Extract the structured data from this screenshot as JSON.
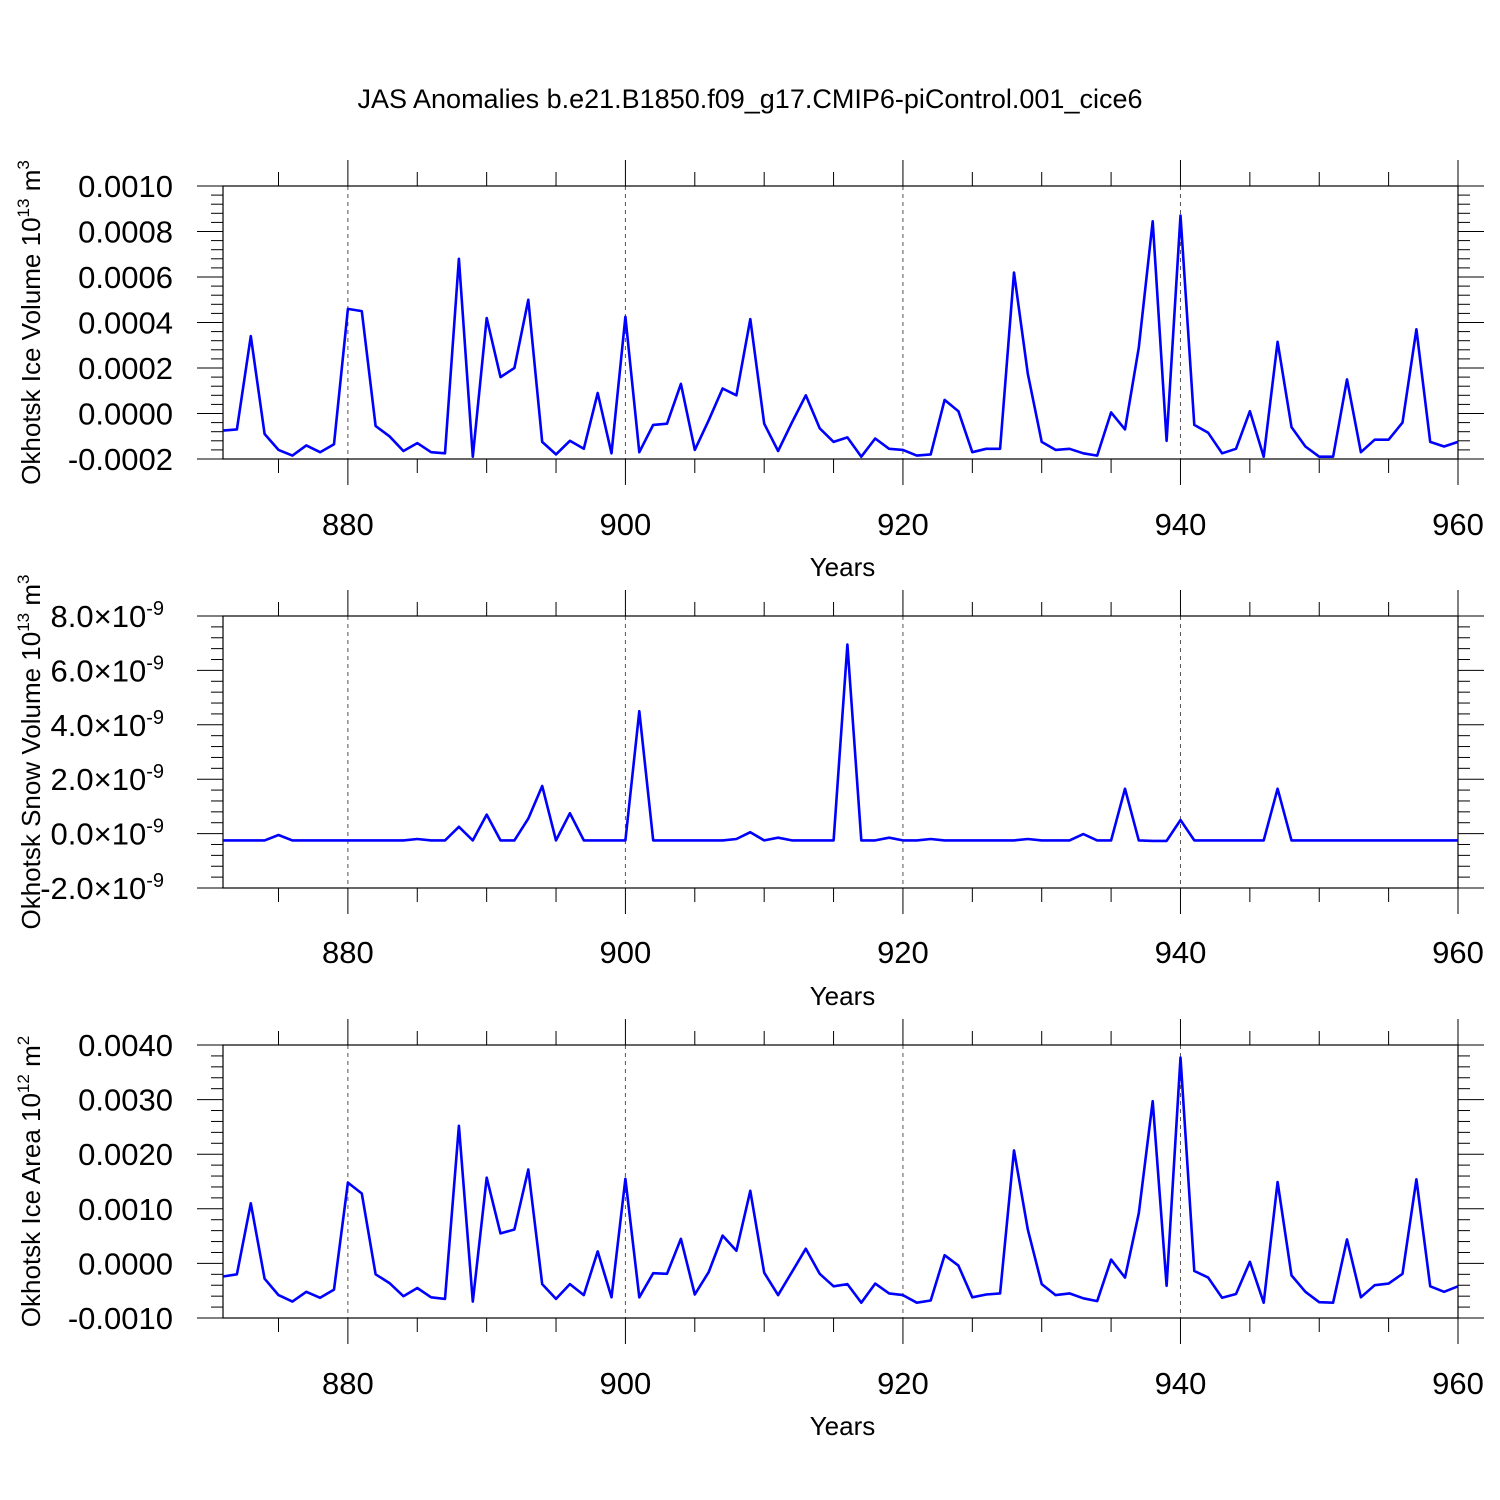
{
  "title": "JAS Anomalies b.e21.B1850.f09_g17.CMIP6-piControl.001_cice6",
  "colors": {
    "line": "#0000ff",
    "axis": "#000000",
    "grid": "#555555"
  },
  "chart_data": [
    {
      "type": "line",
      "ylabel": "Okhotsk Ice Volume 10",
      "ylabel_sup": "13",
      "ylabel_unit": "m",
      "ylabel_unit_sup": "3",
      "xlabel": "Years",
      "xlim": [
        871,
        960
      ],
      "ylim": [
        -0.0002,
        0.001
      ],
      "x_ticks": [
        880,
        900,
        920,
        940,
        960
      ],
      "x_tick_labels": [
        "880",
        "900",
        "920",
        "940",
        "960"
      ],
      "y_ticks": [
        -0.0002,
        0.0,
        0.0002,
        0.0004,
        0.0006,
        0.0008,
        0.001
      ],
      "y_tick_labels": [
        "-0.0002",
        "0.0000",
        "0.0002",
        "0.0004",
        "0.0006",
        "0.0008",
        "0.0010"
      ],
      "vertical_grid": true,
      "series": [
        {
          "x": [
            871,
            872,
            873,
            874,
            875,
            876,
            877,
            878,
            879,
            880,
            881,
            882,
            883,
            884,
            885,
            886,
            887,
            888,
            889,
            890,
            891,
            892,
            893,
            894,
            895,
            896,
            897,
            898,
            899,
            900,
            901,
            902,
            903,
            904,
            905,
            906,
            907,
            908,
            909,
            910,
            911,
            912,
            913,
            914,
            915,
            916,
            917,
            918,
            919,
            920,
            921,
            922,
            923,
            924,
            925,
            926,
            927,
            928,
            929,
            930,
            931,
            932,
            933,
            934,
            935,
            936,
            937,
            938,
            939,
            940,
            941,
            942,
            943,
            944,
            945,
            946,
            947,
            948,
            949,
            950,
            951,
            952,
            953,
            954,
            955,
            956,
            957,
            958,
            959,
            960
          ],
          "values": [
            -7.5e-05,
            -7e-05,
            0.00034,
            -9e-05,
            -0.00016,
            -0.000185,
            -0.00014,
            -0.00017,
            -0.000135,
            0.00046,
            0.00045,
            -5.5e-05,
            -0.0001,
            -0.000165,
            -0.00013,
            -0.00017,
            -0.000175,
            0.00068,
            -0.00019,
            0.00042,
            0.00016,
            0.0002,
            0.0005,
            -0.000125,
            -0.00018,
            -0.00012,
            -0.000155,
            9e-05,
            -0.000175,
            0.000425,
            -0.00017,
            -5e-05,
            -4.5e-05,
            0.00013,
            -0.00016,
            -3e-05,
            0.00011,
            8e-05,
            0.000415,
            -4.5e-05,
            -0.000165,
            -4e-05,
            8e-05,
            -6.5e-05,
            -0.000125,
            -0.000105,
            -0.00019,
            -0.00011,
            -0.000155,
            -0.00016,
            -0.000185,
            -0.00018,
            6e-05,
            1e-05,
            -0.00017,
            -0.000155,
            -0.000155,
            0.00062,
            0.000175,
            -0.000125,
            -0.00016,
            -0.000155,
            -0.000175,
            -0.000185,
            5e-06,
            -7e-05,
            0.00029,
            0.000845,
            -0.00012,
            0.00087,
            -5e-05,
            -8.5e-05,
            -0.000175,
            -0.000155,
            1e-05,
            -0.00019,
            0.000315,
            -6e-05,
            -0.000145,
            -0.00019,
            -0.00019,
            0.00015,
            -0.00017,
            -0.000115,
            -0.000115,
            -4e-05,
            0.00037,
            -0.000125,
            -0.000145,
            -0.000125
          ]
        }
      ]
    },
    {
      "type": "line",
      "ylabel": "Okhotsk Snow Volume 10",
      "ylabel_sup": "13",
      "ylabel_unit": "m",
      "ylabel_unit_sup": "3",
      "xlabel": "Years",
      "xlim": [
        871,
        960
      ],
      "ylim": [
        -2e-09,
        8e-09
      ],
      "x_ticks": [
        880,
        900,
        920,
        940,
        960
      ],
      "x_tick_labels": [
        "880",
        "900",
        "920",
        "940",
        "960"
      ],
      "y_ticks": [
        -2e-09,
        0.0,
        2e-09,
        4e-09,
        6e-09,
        8e-09
      ],
      "y_tick_labels": [
        "-2.0",
        "0.0",
        "2.0",
        "4.0",
        "6.0",
        "8.0"
      ],
      "y_tick_times": "×10",
      "y_tick_exponent": "-9",
      "vertical_grid": true,
      "series": [
        {
          "x": [
            871,
            872,
            873,
            874,
            875,
            876,
            877,
            878,
            879,
            880,
            881,
            882,
            883,
            884,
            885,
            886,
            887,
            888,
            889,
            890,
            891,
            892,
            893,
            894,
            895,
            896,
            897,
            898,
            899,
            900,
            901,
            902,
            903,
            904,
            905,
            906,
            907,
            908,
            909,
            910,
            911,
            912,
            913,
            914,
            915,
            916,
            917,
            918,
            919,
            920,
            921,
            922,
            923,
            924,
            925,
            926,
            927,
            928,
            929,
            930,
            931,
            932,
            933,
            934,
            935,
            936,
            937,
            938,
            939,
            940,
            941,
            942,
            943,
            944,
            945,
            946,
            947,
            948,
            949,
            950,
            951,
            952,
            953,
            954,
            955,
            956,
            957,
            958,
            959,
            960
          ],
          "values": [
            -2.5e-10,
            -2.5e-10,
            -2.5e-10,
            -2.5e-10,
            -5e-11,
            -2.5e-10,
            -2.5e-10,
            -2.5e-10,
            -2.5e-10,
            -2.5e-10,
            -2.5e-10,
            -2.5e-10,
            -2.5e-10,
            -2.5e-10,
            -2e-10,
            -2.5e-10,
            -2.5e-10,
            2.5e-10,
            -2.5e-10,
            7e-10,
            -2.5e-10,
            -2.5e-10,
            5.5e-10,
            1.75e-09,
            -2.5e-10,
            7.5e-10,
            -2.5e-10,
            -2.5e-10,
            -2.5e-10,
            -2.5e-10,
            4.5e-09,
            -2.5e-10,
            -2.5e-10,
            -2.5e-10,
            -2.5e-10,
            -2.5e-10,
            -2.5e-10,
            -2e-10,
            5e-11,
            -2.5e-10,
            -1.5e-10,
            -2.5e-10,
            -2.5e-10,
            -2.5e-10,
            -2.5e-10,
            6.95e-09,
            -2.5e-10,
            -2.5e-10,
            -1.5e-10,
            -2.5e-10,
            -2.5e-10,
            -2e-10,
            -2.5e-10,
            -2.5e-10,
            -2.5e-10,
            -2.5e-10,
            -2.5e-10,
            -2.5e-10,
            -2e-10,
            -2.5e-10,
            -2.5e-10,
            -2.5e-10,
            -2e-11,
            -2.5e-10,
            -2.5e-10,
            1.65e-09,
            -2.5e-10,
            -2.7e-10,
            -2.7e-10,
            5e-10,
            -2.5e-10,
            -2.5e-10,
            -2.5e-10,
            -2.5e-10,
            -2.5e-10,
            -2.5e-10,
            1.65e-09,
            -2.5e-10,
            -2.5e-10,
            -2.5e-10,
            -2.5e-10,
            -2.5e-10,
            -2.5e-10,
            -2.5e-10,
            -2.5e-10,
            -2.5e-10,
            -2.5e-10,
            -2.5e-10,
            -2.5e-10,
            -2.5e-10
          ]
        }
      ]
    },
    {
      "type": "line",
      "ylabel": "Okhotsk Ice Area 10",
      "ylabel_sup": "12",
      "ylabel_unit": "m",
      "ylabel_unit_sup": "2",
      "xlabel": "Years",
      "xlim": [
        871,
        960
      ],
      "ylim": [
        -0.001,
        0.004
      ],
      "x_ticks": [
        880,
        900,
        920,
        940,
        960
      ],
      "x_tick_labels": [
        "880",
        "900",
        "920",
        "940",
        "960"
      ],
      "y_ticks": [
        -0.001,
        0.0,
        0.001,
        0.002,
        0.003,
        0.004
      ],
      "y_tick_labels": [
        "-0.0010",
        "0.0000",
        "0.0010",
        "0.0020",
        "0.0030",
        "0.0040"
      ],
      "vertical_grid": true,
      "series": [
        {
          "x": [
            871,
            872,
            873,
            874,
            875,
            876,
            877,
            878,
            879,
            880,
            881,
            882,
            883,
            884,
            885,
            886,
            887,
            888,
            889,
            890,
            891,
            892,
            893,
            894,
            895,
            896,
            897,
            898,
            899,
            900,
            901,
            902,
            903,
            904,
            905,
            906,
            907,
            908,
            909,
            910,
            911,
            912,
            913,
            914,
            915,
            916,
            917,
            918,
            919,
            920,
            921,
            922,
            923,
            924,
            925,
            926,
            927,
            928,
            929,
            930,
            931,
            932,
            933,
            934,
            935,
            936,
            937,
            938,
            939,
            940,
            941,
            942,
            943,
            944,
            945,
            946,
            947,
            948,
            949,
            950,
            951,
            952,
            953,
            954,
            955,
            956,
            957,
            958,
            959,
            960
          ],
          "values": [
            -0.00024,
            -0.0002,
            0.0011,
            -0.00028,
            -0.00058,
            -0.0007,
            -0.00052,
            -0.00063,
            -0.00048,
            0.00148,
            0.00128,
            -0.0002,
            -0.00036,
            -0.0006,
            -0.00045,
            -0.00062,
            -0.00065,
            0.00252,
            -0.0007,
            0.00157,
            0.00055,
            0.00062,
            0.00172,
            -0.00038,
            -0.00065,
            -0.00038,
            -0.00058,
            0.00022,
            -0.00062,
            0.00155,
            -0.00062,
            -0.00018,
            -0.00019,
            0.00045,
            -0.00057,
            -0.00016,
            0.00051,
            0.00023,
            0.00133,
            -0.00017,
            -0.00058,
            -0.00016,
            0.00027,
            -0.00019,
            -0.00042,
            -0.00038,
            -0.00072,
            -0.00037,
            -0.00055,
            -0.00058,
            -0.00072,
            -0.00068,
            0.00015,
            -4e-05,
            -0.00062,
            -0.00057,
            -0.00055,
            0.00207,
            0.00062,
            -0.00038,
            -0.00058,
            -0.00055,
            -0.00064,
            -0.00069,
            7e-05,
            -0.00026,
            0.00092,
            0.00297,
            -0.00041,
            0.00377,
            -0.00014,
            -0.00026,
            -0.00063,
            -0.00056,
            3e-05,
            -0.00072,
            0.00149,
            -0.00022,
            -0.00052,
            -0.00071,
            -0.00072,
            0.00044,
            -0.00062,
            -0.0004,
            -0.00037,
            -0.00019,
            0.00154,
            -0.00042,
            -0.00052,
            -0.00042
          ]
        }
      ]
    }
  ]
}
